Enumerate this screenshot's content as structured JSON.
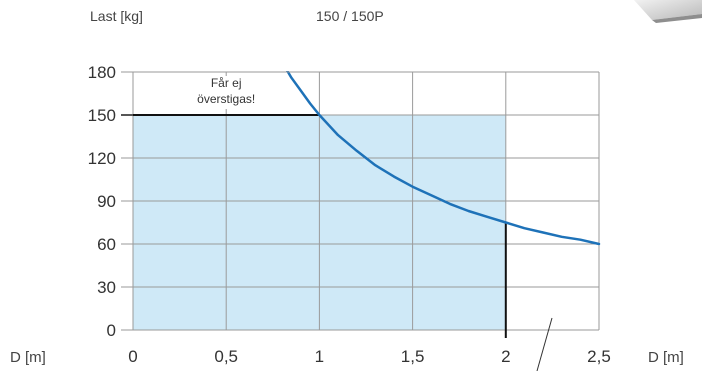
{
  "header": {
    "load_label": "Last [kg]",
    "model_label": "150 / 150P"
  },
  "chart_data": {
    "type": "area",
    "x_unit_label_left": "D [m]",
    "x_unit_label_right": "D [m]",
    "x_ticks": [
      "0",
      "0,5",
      "1",
      "1,5",
      "2",
      "2,5"
    ],
    "x_tick_values": [
      0,
      0.5,
      1,
      1.5,
      2,
      2.5
    ],
    "y_ticks": [
      "0",
      "30",
      "60",
      "90",
      "120",
      "150",
      "180"
    ],
    "y_tick_values": [
      0,
      30,
      60,
      90,
      120,
      150,
      180
    ],
    "xlim": [
      0,
      2.5
    ],
    "ylim": [
      0,
      180
    ],
    "grid": true,
    "annotation": [
      "Får ej",
      "överstigas!"
    ],
    "max_load": 150,
    "max_load_until_x": 1,
    "allowed_area_end_x": 2,
    "limit_curve": {
      "x": [
        0.8,
        0.85,
        0.9,
        0.95,
        1.0,
        1.1,
        1.2,
        1.3,
        1.4,
        1.5,
        1.6,
        1.7,
        1.8,
        1.9,
        2.0,
        2.1,
        2.2,
        2.3,
        2.4,
        2.5
      ],
      "y": [
        187,
        176,
        167,
        158,
        150,
        136,
        125,
        115,
        107,
        100,
        94,
        88,
        83,
        79,
        75,
        71,
        68,
        65,
        63,
        60
      ]
    },
    "colors": {
      "curve": "#1e72b8",
      "fill": "#cfe9f7",
      "grid": "#9a9a9a",
      "boundary": "#111111"
    }
  }
}
